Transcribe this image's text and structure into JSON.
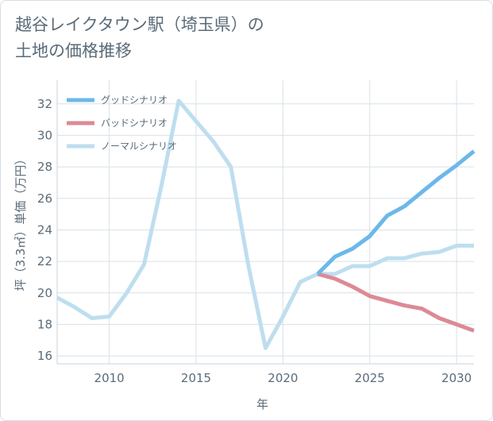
{
  "title_lines": [
    "越谷レイクタウン駅（埼玉県）の",
    "土地の価格推移"
  ],
  "chart_data": {
    "type": "line",
    "title": "越谷レイクタウン駅（埼玉県）の土地の価格推移",
    "xlabel": "年",
    "ylabel": "坪（3.3㎡）単価（万円）",
    "xlim": [
      2007,
      2031
    ],
    "ylim": [
      15.5,
      33.5
    ],
    "xticks": [
      2010,
      2015,
      2020,
      2025,
      2030
    ],
    "yticks": [
      16,
      18,
      20,
      22,
      24,
      26,
      28,
      30,
      32
    ],
    "grid": true,
    "legend_position": "top-left",
    "series": [
      {
        "name": "グッドシナリオ",
        "color": "#6cb8ea",
        "x": [
          2022,
          2023,
          2024,
          2025,
          2026,
          2027,
          2028,
          2029,
          2030,
          2031
        ],
        "values": [
          21.2,
          22.3,
          22.8,
          23.6,
          24.9,
          25.5,
          26.4,
          27.3,
          28.1,
          29.0
        ]
      },
      {
        "name": "バッドシナリオ",
        "color": "#dc8a96",
        "x": [
          2022,
          2023,
          2024,
          2025,
          2026,
          2027,
          2028,
          2029,
          2030,
          2031
        ],
        "values": [
          21.2,
          20.9,
          20.4,
          19.8,
          19.5,
          19.2,
          19.0,
          18.4,
          18.0,
          17.6
        ]
      },
      {
        "name": "ノーマルシナリオ",
        "color": "#bedeef",
        "x": [
          2007,
          2008,
          2009,
          2010,
          2011,
          2012,
          2013,
          2014,
          2015,
          2016,
          2017,
          2018,
          2019,
          2020,
          2021,
          2022,
          2023,
          2024,
          2025,
          2026,
          2027,
          2028,
          2029,
          2030,
          2031
        ],
        "values": [
          19.7,
          19.1,
          18.4,
          18.5,
          20.0,
          21.8,
          26.8,
          32.2,
          30.9,
          29.6,
          28.0,
          21.8,
          16.5,
          18.5,
          20.7,
          21.2,
          21.2,
          21.7,
          21.7,
          22.2,
          22.2,
          22.5,
          22.6,
          23.0,
          23.0
        ]
      }
    ]
  }
}
